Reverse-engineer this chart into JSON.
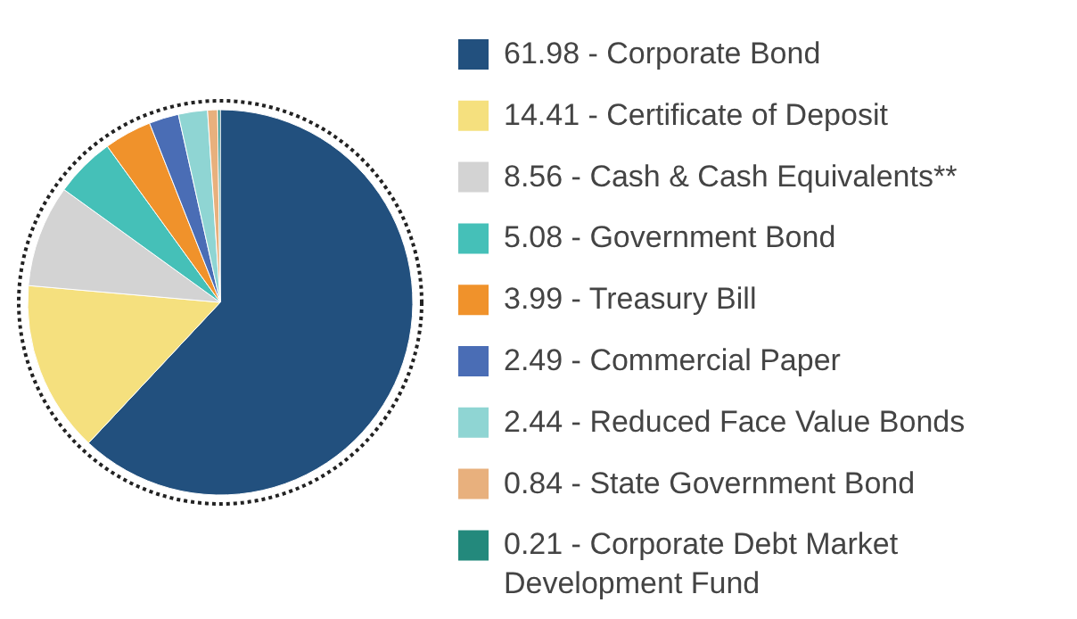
{
  "chart_data": {
    "type": "pie",
    "categories": [
      "61.98 - Corporate Bond",
      "14.41 - Certificate of Deposit",
      "8.56 - Cash & Cash Equivalents**",
      "5.08 - Government Bond",
      "3.99 - Treasury Bill",
      "2.49 - Commercial Paper",
      "2.44 - Reduced Face Value Bonds",
      "0.84 - State Government Bond",
      "0.21 - Corporate Debt Market Development Fund"
    ],
    "values": [
      61.98,
      14.41,
      8.56,
      5.08,
      3.99,
      2.49,
      2.44,
      0.84,
      0.21
    ],
    "colors": [
      "#22507e",
      "#f5e07e",
      "#d3d3d3",
      "#45c0b8",
      "#f0922b",
      "#4a6db5",
      "#8fd5d3",
      "#e8b07d",
      "#23897c"
    ],
    "legend": "right"
  }
}
